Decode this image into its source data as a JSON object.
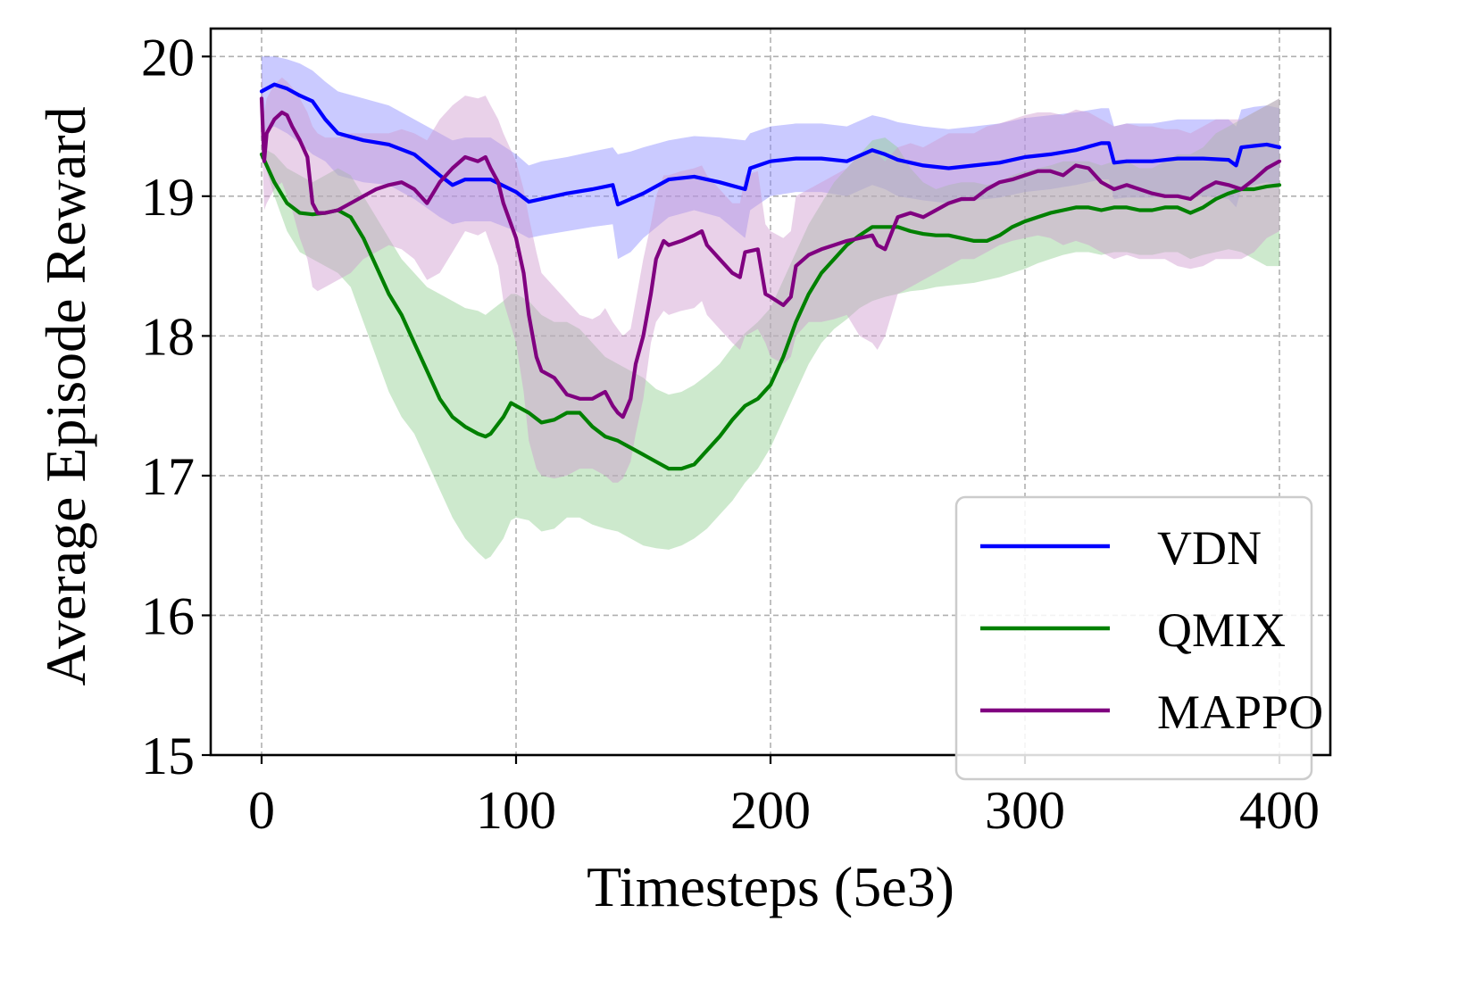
{
  "chart_data": {
    "type": "line",
    "title": "",
    "xlabel": "Timesteps (5e3)",
    "ylabel": "Average Episode Reward",
    "xlim": [
      -20,
      420
    ],
    "ylim": [
      15,
      20.2
    ],
    "xticks": [
      0,
      100,
      200,
      300,
      400
    ],
    "yticks": [
      15,
      16,
      17,
      18,
      19,
      20
    ],
    "xtick_labels": [
      "0",
      "100",
      "200",
      "300",
      "400"
    ],
    "ytick_labels": [
      "15",
      "16",
      "17",
      "18",
      "19",
      "20"
    ],
    "grid": true,
    "legend_position": "lower-right",
    "series": [
      {
        "name": "VDN",
        "color": "#0000ff",
        "band_color": "#8a8aff",
        "x": [
          0,
          5,
          10,
          15,
          20,
          25,
          30,
          40,
          50,
          60,
          70,
          75,
          80,
          90,
          100,
          105,
          110,
          120,
          130,
          138,
          140,
          145,
          150,
          160,
          170,
          180,
          190,
          192,
          200,
          210,
          220,
          230,
          240,
          245,
          250,
          260,
          270,
          280,
          290,
          300,
          310,
          320,
          330,
          333,
          335,
          340,
          350,
          360,
          370,
          380,
          383,
          385,
          390,
          395,
          400
        ],
        "y": [
          19.75,
          19.8,
          19.77,
          19.72,
          19.68,
          19.55,
          19.45,
          19.4,
          19.37,
          19.3,
          19.15,
          19.08,
          19.12,
          19.12,
          19.03,
          18.96,
          18.98,
          19.02,
          19.05,
          19.08,
          18.94,
          18.98,
          19.02,
          19.12,
          19.14,
          19.1,
          19.05,
          19.2,
          19.25,
          19.27,
          19.27,
          19.25,
          19.33,
          19.3,
          19.26,
          19.22,
          19.2,
          19.22,
          19.24,
          19.28,
          19.3,
          19.33,
          19.38,
          19.38,
          19.24,
          19.25,
          19.25,
          19.27,
          19.27,
          19.26,
          19.22,
          19.35,
          19.36,
          19.37,
          19.35
        ],
        "lower": [
          19.45,
          19.5,
          19.45,
          19.38,
          19.3,
          19.25,
          19.15,
          19.1,
          19.08,
          18.98,
          18.85,
          18.8,
          18.82,
          18.82,
          18.75,
          18.7,
          18.72,
          18.75,
          18.78,
          18.8,
          18.55,
          18.6,
          18.7,
          18.85,
          18.9,
          18.85,
          18.7,
          18.9,
          19.0,
          19.03,
          19.03,
          19.0,
          19.08,
          19.05,
          19.0,
          18.97,
          18.95,
          18.97,
          18.99,
          19.03,
          19.05,
          19.08,
          19.12,
          19.12,
          18.98,
          18.99,
          18.99,
          19.0,
          19.0,
          18.98,
          18.92,
          19.05,
          19.08,
          19.1,
          19.08
        ],
        "upper": [
          20.0,
          20.0,
          19.98,
          19.95,
          19.9,
          19.82,
          19.75,
          19.7,
          19.65,
          19.55,
          19.45,
          19.4,
          19.42,
          19.42,
          19.3,
          19.22,
          19.25,
          19.28,
          19.32,
          19.35,
          19.3,
          19.32,
          19.35,
          19.4,
          19.43,
          19.42,
          19.4,
          19.45,
          19.5,
          19.52,
          19.52,
          19.5,
          19.58,
          19.56,
          19.53,
          19.5,
          19.48,
          19.5,
          19.52,
          19.56,
          19.58,
          19.6,
          19.63,
          19.63,
          19.5,
          19.52,
          19.52,
          19.55,
          19.55,
          19.55,
          19.5,
          19.62,
          19.64,
          19.65,
          19.63
        ]
      },
      {
        "name": "QMIX",
        "color": "#008000",
        "band_color": "#90cf90",
        "x": [
          0,
          5,
          10,
          15,
          20,
          25,
          30,
          35,
          40,
          45,
          50,
          55,
          60,
          65,
          70,
          75,
          80,
          85,
          88,
          90,
          95,
          98,
          100,
          105,
          110,
          115,
          120,
          125,
          130,
          135,
          140,
          145,
          150,
          155,
          160,
          165,
          170,
          175,
          180,
          185,
          190,
          195,
          200,
          205,
          210,
          215,
          220,
          225,
          230,
          235,
          240,
          245,
          250,
          255,
          260,
          265,
          270,
          275,
          280,
          285,
          290,
          295,
          300,
          305,
          310,
          315,
          320,
          325,
          330,
          335,
          340,
          345,
          350,
          355,
          360,
          365,
          370,
          375,
          380,
          385,
          390,
          395,
          400
        ],
        "y": [
          19.3,
          19.1,
          18.95,
          18.88,
          18.87,
          18.88,
          18.9,
          18.85,
          18.7,
          18.5,
          18.3,
          18.15,
          17.95,
          17.75,
          17.55,
          17.42,
          17.35,
          17.3,
          17.28,
          17.3,
          17.42,
          17.52,
          17.5,
          17.45,
          17.38,
          17.4,
          17.45,
          17.45,
          17.35,
          17.28,
          17.25,
          17.2,
          17.15,
          17.1,
          17.05,
          17.05,
          17.08,
          17.18,
          17.28,
          17.4,
          17.5,
          17.55,
          17.65,
          17.85,
          18.1,
          18.3,
          18.45,
          18.55,
          18.65,
          18.72,
          18.78,
          18.78,
          18.78,
          18.75,
          18.73,
          18.72,
          18.72,
          18.7,
          18.68,
          18.68,
          18.72,
          18.78,
          18.82,
          18.85,
          18.88,
          18.9,
          18.92,
          18.92,
          18.9,
          18.92,
          18.92,
          18.9,
          18.9,
          18.92,
          18.92,
          18.88,
          18.92,
          18.98,
          19.02,
          19.05,
          19.05,
          19.07,
          19.08
        ],
        "lower": [
          19.3,
          19.0,
          18.75,
          18.6,
          18.55,
          18.5,
          18.45,
          18.35,
          18.1,
          17.85,
          17.6,
          17.42,
          17.3,
          17.1,
          16.9,
          16.7,
          16.55,
          16.45,
          16.4,
          16.42,
          16.55,
          16.68,
          16.7,
          16.68,
          16.6,
          16.62,
          16.7,
          16.7,
          16.65,
          16.62,
          16.6,
          16.55,
          16.5,
          16.48,
          16.47,
          16.5,
          16.55,
          16.62,
          16.72,
          16.82,
          16.95,
          17.05,
          17.2,
          17.4,
          17.6,
          17.8,
          17.95,
          18.05,
          18.12,
          18.2,
          18.25,
          18.28,
          18.3,
          18.32,
          18.33,
          18.35,
          18.36,
          18.37,
          18.38,
          18.4,
          18.42,
          18.45,
          18.48,
          18.52,
          18.55,
          18.58,
          18.6,
          18.6,
          18.58,
          18.6,
          18.6,
          18.58,
          18.58,
          18.6,
          18.6,
          18.55,
          18.58,
          18.6,
          18.62,
          18.6,
          18.55,
          18.5,
          18.5
        ],
        "upper": [
          19.35,
          19.3,
          19.2,
          19.15,
          19.1,
          19.15,
          19.2,
          19.15,
          19.0,
          18.85,
          18.7,
          18.55,
          18.45,
          18.35,
          18.3,
          18.25,
          18.2,
          18.18,
          18.15,
          18.18,
          18.25,
          18.3,
          18.3,
          18.25,
          18.15,
          18.1,
          18.1,
          18.05,
          17.95,
          17.85,
          17.8,
          17.75,
          17.7,
          17.62,
          17.58,
          17.6,
          17.65,
          17.72,
          17.8,
          17.92,
          18.02,
          18.1,
          18.2,
          18.4,
          18.6,
          18.8,
          18.95,
          19.1,
          19.2,
          19.3,
          19.4,
          19.42,
          19.35,
          19.2,
          19.1,
          19.05,
          19.08,
          19.1,
          19.1,
          19.08,
          19.1,
          19.15,
          19.18,
          19.2,
          19.22,
          19.25,
          19.25,
          19.25,
          19.22,
          19.25,
          19.25,
          19.2,
          19.2,
          19.25,
          19.3,
          19.3,
          19.35,
          19.45,
          19.5,
          19.55,
          19.6,
          19.65,
          19.7
        ]
      },
      {
        "name": "MAPPO",
        "color": "#800080",
        "band_color": "#cf9acf",
        "x": [
          0,
          1,
          2,
          5,
          8,
          10,
          12,
          15,
          18,
          20,
          22,
          25,
          30,
          35,
          40,
          45,
          50,
          55,
          60,
          65,
          70,
          75,
          80,
          85,
          88,
          90,
          93,
          95,
          100,
          103,
          105,
          108,
          110,
          115,
          120,
          125,
          130,
          133,
          135,
          138,
          140,
          142,
          145,
          147,
          150,
          153,
          155,
          158,
          160,
          165,
          170,
          173,
          175,
          180,
          185,
          188,
          190,
          195,
          198,
          200,
          205,
          208,
          210,
          215,
          220,
          225,
          230,
          235,
          240,
          242,
          245,
          250,
          255,
          260,
          265,
          270,
          275,
          280,
          285,
          290,
          295,
          300,
          305,
          310,
          315,
          320,
          325,
          330,
          335,
          340,
          345,
          350,
          355,
          360,
          365,
          370,
          375,
          380,
          385,
          390,
          395,
          400
        ],
        "y": [
          19.7,
          19.25,
          19.45,
          19.55,
          19.6,
          19.58,
          19.5,
          19.4,
          19.28,
          18.95,
          18.88,
          18.88,
          18.9,
          18.95,
          19.0,
          19.05,
          19.08,
          19.1,
          19.05,
          18.95,
          19.1,
          19.2,
          19.28,
          19.25,
          19.28,
          19.2,
          19.1,
          18.95,
          18.7,
          18.45,
          18.15,
          17.85,
          17.75,
          17.7,
          17.58,
          17.55,
          17.55,
          17.58,
          17.6,
          17.5,
          17.45,
          17.42,
          17.55,
          17.8,
          18.0,
          18.3,
          18.55,
          18.68,
          18.65,
          18.68,
          18.72,
          18.75,
          18.65,
          18.55,
          18.45,
          18.42,
          18.6,
          18.62,
          18.3,
          18.28,
          18.22,
          18.28,
          18.5,
          18.58,
          18.62,
          18.65,
          18.68,
          18.7,
          18.72,
          18.65,
          18.62,
          18.85,
          18.88,
          18.85,
          18.9,
          18.95,
          18.98,
          18.98,
          19.05,
          19.1,
          19.12,
          19.15,
          19.18,
          19.18,
          19.15,
          19.22,
          19.2,
          19.1,
          19.05,
          19.08,
          19.05,
          19.02,
          19.0,
          19.0,
          18.98,
          19.05,
          19.1,
          19.08,
          19.05,
          19.12,
          19.2,
          19.25
        ],
        "lower": [
          19.5,
          18.9,
          18.95,
          19.05,
          19.1,
          19.0,
          18.9,
          18.7,
          18.55,
          18.35,
          18.32,
          18.35,
          18.4,
          18.45,
          18.55,
          18.6,
          18.65,
          18.62,
          18.55,
          18.4,
          18.45,
          18.6,
          18.75,
          18.72,
          18.75,
          18.65,
          18.5,
          18.25,
          17.95,
          17.6,
          17.25,
          17.05,
          17.0,
          16.98,
          17.0,
          17.05,
          17.05,
          17.02,
          17.0,
          16.95,
          16.95,
          16.98,
          17.1,
          17.3,
          17.55,
          17.95,
          18.1,
          18.18,
          18.15,
          18.18,
          18.2,
          18.25,
          18.15,
          18.05,
          17.95,
          17.9,
          18.0,
          18.05,
          17.95,
          17.85,
          17.8,
          17.85,
          18.0,
          18.1,
          18.1,
          18.12,
          18.15,
          18.0,
          17.95,
          17.9,
          18.0,
          18.3,
          18.35,
          18.4,
          18.45,
          18.5,
          18.55,
          18.55,
          18.6,
          18.65,
          18.68,
          18.7,
          18.72,
          18.7,
          18.65,
          18.68,
          18.65,
          18.6,
          18.55,
          18.58,
          18.55,
          18.55,
          18.55,
          18.5,
          18.48,
          18.5,
          18.55,
          18.55,
          18.55,
          18.6,
          18.7,
          18.75
        ],
        "upper": [
          19.9,
          19.6,
          19.7,
          19.8,
          19.85,
          19.82,
          19.78,
          19.7,
          19.6,
          19.5,
          19.45,
          19.42,
          19.42,
          19.45,
          19.45,
          19.45,
          19.45,
          19.48,
          19.45,
          19.4,
          19.55,
          19.65,
          19.72,
          19.7,
          19.72,
          19.65,
          19.55,
          19.45,
          19.25,
          19.05,
          18.85,
          18.6,
          18.45,
          18.35,
          18.25,
          18.15,
          18.12,
          18.15,
          18.2,
          18.1,
          18.05,
          18.0,
          18.05,
          18.25,
          18.55,
          18.8,
          19.0,
          19.15,
          19.15,
          19.18,
          19.2,
          19.22,
          19.15,
          19.05,
          18.95,
          18.95,
          19.15,
          19.18,
          18.8,
          18.75,
          18.7,
          18.75,
          19.0,
          19.05,
          19.1,
          19.15,
          19.2,
          19.3,
          19.35,
          19.3,
          19.25,
          19.35,
          19.38,
          19.35,
          19.4,
          19.45,
          19.45,
          19.45,
          19.5,
          19.52,
          19.55,
          19.58,
          19.6,
          19.6,
          19.58,
          19.62,
          19.6,
          19.55,
          19.5,
          19.52,
          19.5,
          19.5,
          19.48,
          19.48,
          19.45,
          19.5,
          19.55,
          19.55,
          19.55,
          19.6,
          19.65,
          19.7
        ]
      }
    ]
  }
}
